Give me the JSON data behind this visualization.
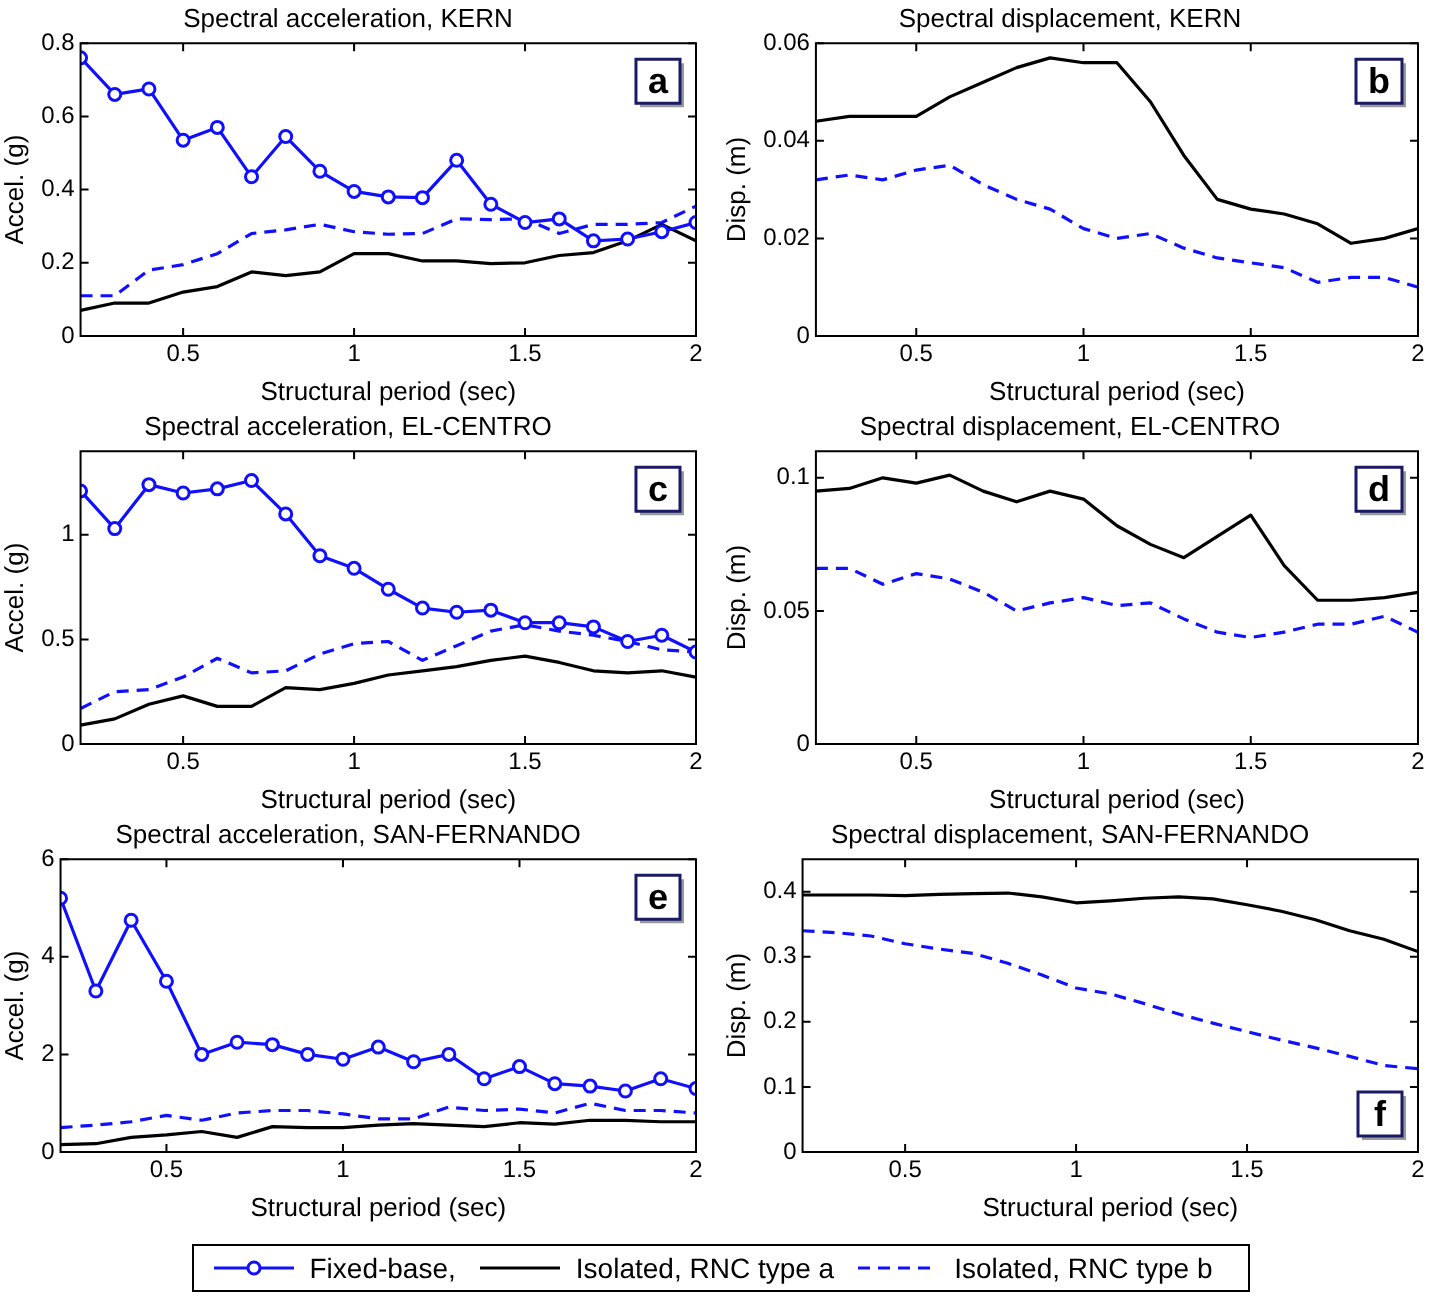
{
  "chart_data": [
    {
      "type": "line",
      "title": "Spectral acceleration, KERN",
      "xlabel": "Structural period (sec)",
      "ylabel": "Accel. (g)",
      "annotations": [
        "a"
      ],
      "legend": "bottom",
      "x": [
        0.2,
        0.3,
        0.4,
        0.5,
        0.6,
        0.7,
        0.8,
        0.9,
        1.0,
        1.1,
        1.2,
        1.3,
        1.4,
        1.5,
        1.6,
        1.7,
        1.8,
        1.9,
        2.0
      ],
      "xlim": [
        0.2,
        2
      ],
      "xticks": [
        0.5,
        1,
        1.5,
        2
      ],
      "ylim": [
        0,
        0.8
      ],
      "yticks": [
        0,
        0.2,
        0.4,
        0.6,
        0.8
      ],
      "series": [
        {
          "name": "Fixed-base,",
          "color": "#1010ff",
          "marker": "circle",
          "line_style": "solid",
          "values": [
            0.76,
            0.66,
            0.675,
            0.535,
            0.57,
            0.435,
            0.545,
            0.45,
            0.395,
            0.38,
            0.378,
            0.48,
            0.36,
            0.31,
            0.32,
            0.26,
            0.265,
            0.285,
            0.31
          ]
        },
        {
          "name": "Isolated, RNC type a",
          "color": "#000000",
          "marker": "none",
          "line_style": "solid",
          "values": [
            0.07,
            0.09,
            0.09,
            0.12,
            0.135,
            0.175,
            0.165,
            0.175,
            0.225,
            0.225,
            0.205,
            0.205,
            0.198,
            0.2,
            0.22,
            0.228,
            0.26,
            0.305,
            0.26
          ]
        },
        {
          "name": "Isolated, RNC type b",
          "color": "#1010ff",
          "marker": "none",
          "line_style": "dashed",
          "values": [
            0.11,
            0.11,
            0.18,
            0.195,
            0.225,
            0.28,
            0.29,
            0.305,
            0.285,
            0.278,
            0.28,
            0.32,
            0.318,
            0.32,
            0.28,
            0.305,
            0.305,
            0.31,
            0.355
          ]
        }
      ]
    },
    {
      "type": "line",
      "title": "Spectral displacement, KERN",
      "xlabel": "Structural period (sec)",
      "ylabel": "Disp. (m)",
      "annotations": [
        "b"
      ],
      "x": [
        0.2,
        0.3,
        0.4,
        0.5,
        0.6,
        0.7,
        0.8,
        0.9,
        1.0,
        1.1,
        1.2,
        1.3,
        1.4,
        1.5,
        1.6,
        1.7,
        1.8,
        1.9,
        2.0
      ],
      "xlim": [
        0.2,
        2
      ],
      "xticks": [
        0.5,
        1,
        1.5,
        2
      ],
      "ylim": [
        0,
        0.06
      ],
      "yticks": [
        0,
        0.02,
        0.04,
        0.06
      ],
      "series": [
        {
          "color": "#000000",
          "marker": "none",
          "line_style": "solid",
          "values": [
            0.044,
            0.045,
            0.045,
            0.045,
            0.049,
            0.052,
            0.055,
            0.057,
            0.056,
            0.056,
            0.048,
            0.037,
            0.028,
            0.026,
            0.025,
            0.023,
            0.019,
            0.02,
            0.022
          ]
        },
        {
          "color": "#1010ff",
          "marker": "none",
          "line_style": "dashed",
          "values": [
            0.032,
            0.033,
            0.032,
            0.034,
            0.035,
            0.031,
            0.028,
            0.026,
            0.022,
            0.02,
            0.021,
            0.018,
            0.016,
            0.015,
            0.014,
            0.011,
            0.012,
            0.012,
            0.01
          ]
        }
      ]
    },
    {
      "type": "line",
      "title": "Spectral acceleration, EL-CENTRO",
      "xlabel": "Structural period (sec)",
      "ylabel": "Accel. (g)",
      "annotations": [
        "c"
      ],
      "x": [
        0.2,
        0.3,
        0.4,
        0.5,
        0.6,
        0.7,
        0.8,
        0.9,
        1.0,
        1.1,
        1.2,
        1.3,
        1.4,
        1.5,
        1.6,
        1.7,
        1.8,
        1.9,
        2.0
      ],
      "xlim": [
        0.2,
        2
      ],
      "xticks": [
        0.5,
        1,
        1.5,
        2
      ],
      "ylim": [
        0,
        1.4
      ],
      "yticks": [
        0,
        0.5,
        1
      ],
      "series": [
        {
          "color": "#1010ff",
          "marker": "circle",
          "line_style": "solid",
          "values": [
            1.21,
            1.03,
            1.24,
            1.2,
            1.22,
            1.26,
            1.1,
            0.9,
            0.84,
            0.74,
            0.65,
            0.63,
            0.64,
            0.58,
            0.58,
            0.56,
            0.49,
            0.52,
            0.44
          ]
        },
        {
          "color": "#000000",
          "marker": "none",
          "line_style": "solid",
          "values": [
            0.09,
            0.12,
            0.19,
            0.23,
            0.18,
            0.18,
            0.27,
            0.26,
            0.29,
            0.33,
            0.35,
            0.37,
            0.4,
            0.42,
            0.39,
            0.35,
            0.34,
            0.35,
            0.32
          ]
        },
        {
          "color": "#1010ff",
          "marker": "none",
          "line_style": "dashed",
          "values": [
            0.17,
            0.25,
            0.26,
            0.32,
            0.41,
            0.34,
            0.35,
            0.43,
            0.48,
            0.49,
            0.4,
            0.47,
            0.54,
            0.57,
            0.54,
            0.52,
            0.49,
            0.45,
            0.44
          ]
        }
      ]
    },
    {
      "type": "line",
      "title": "Spectral displacement, EL-CENTRO",
      "xlabel": "Structural period (sec)",
      "ylabel": "Disp. (m)",
      "annotations": [
        "d"
      ],
      "x": [
        0.2,
        0.3,
        0.4,
        0.5,
        0.6,
        0.7,
        0.8,
        0.9,
        1.0,
        1.1,
        1.2,
        1.3,
        1.4,
        1.5,
        1.6,
        1.7,
        1.8,
        1.9,
        2.0
      ],
      "xlim": [
        0.2,
        2
      ],
      "xticks": [
        0.5,
        1,
        1.5,
        2
      ],
      "ylim": [
        0,
        0.11
      ],
      "yticks": [
        0,
        0.05,
        0.1
      ],
      "series": [
        {
          "color": "#000000",
          "marker": "none",
          "line_style": "solid",
          "values": [
            0.095,
            0.096,
            0.1,
            0.098,
            0.101,
            0.095,
            0.091,
            0.095,
            0.092,
            0.082,
            0.075,
            0.07,
            0.078,
            0.086,
            0.067,
            0.054,
            0.054,
            0.055,
            0.057
          ]
        },
        {
          "color": "#1010ff",
          "marker": "none",
          "line_style": "dashed",
          "values": [
            0.066,
            0.066,
            0.06,
            0.064,
            0.062,
            0.057,
            0.05,
            0.053,
            0.055,
            0.052,
            0.053,
            0.047,
            0.042,
            0.04,
            0.042,
            0.045,
            0.045,
            0.048,
            0.042
          ]
        }
      ]
    },
    {
      "type": "line",
      "title": "Spectral acceleration, SAN-FERNANDO",
      "xlabel": "Structural period (sec)",
      "ylabel": "Accel. (g)",
      "annotations": [
        "e"
      ],
      "x": [
        0.2,
        0.3,
        0.4,
        0.5,
        0.6,
        0.7,
        0.8,
        0.9,
        1.0,
        1.1,
        1.2,
        1.3,
        1.4,
        1.5,
        1.6,
        1.7,
        1.8,
        1.9,
        2.0
      ],
      "xlim": [
        0.2,
        2
      ],
      "xticks": [
        0.5,
        1,
        1.5,
        2
      ],
      "ylim": [
        0,
        6
      ],
      "yticks": [
        0,
        2,
        4,
        6
      ],
      "series": [
        {
          "color": "#1010ff",
          "marker": "circle",
          "line_style": "solid",
          "values": [
            5.2,
            3.3,
            4.75,
            3.5,
            2.0,
            2.25,
            2.2,
            2.0,
            1.9,
            2.15,
            1.85,
            2.0,
            1.5,
            1.75,
            1.4,
            1.35,
            1.25,
            1.5,
            1.3
          ]
        },
        {
          "color": "#000000",
          "marker": "none",
          "line_style": "solid",
          "values": [
            0.15,
            0.17,
            0.3,
            0.35,
            0.42,
            0.3,
            0.52,
            0.5,
            0.5,
            0.55,
            0.58,
            0.55,
            0.52,
            0.6,
            0.57,
            0.65,
            0.65,
            0.62,
            0.62
          ]
        },
        {
          "color": "#1010ff",
          "marker": "none",
          "line_style": "dashed",
          "values": [
            0.5,
            0.55,
            0.62,
            0.75,
            0.65,
            0.8,
            0.85,
            0.85,
            0.78,
            0.68,
            0.68,
            0.92,
            0.85,
            0.88,
            0.8,
            1.0,
            0.85,
            0.85,
            0.8
          ]
        }
      ]
    },
    {
      "type": "line",
      "title": "Spectral displacement, SAN-FERNANDO",
      "xlabel": "Structural period (sec)",
      "ylabel": "Disp. (m)",
      "annotations": [
        "f"
      ],
      "x": [
        0.2,
        0.3,
        0.4,
        0.5,
        0.6,
        0.7,
        0.8,
        0.9,
        1.0,
        1.1,
        1.2,
        1.3,
        1.4,
        1.5,
        1.6,
        1.7,
        1.8,
        1.9,
        2.0
      ],
      "xlim": [
        0.2,
        2
      ],
      "xticks": [
        0.5,
        1,
        1.5,
        2
      ],
      "ylim": [
        0,
        0.45
      ],
      "yticks": [
        0,
        0.1,
        0.2,
        0.3,
        0.4
      ],
      "series": [
        {
          "color": "#000000",
          "marker": "none",
          "line_style": "solid",
          "values": [
            0.395,
            0.395,
            0.395,
            0.394,
            0.396,
            0.397,
            0.398,
            0.392,
            0.383,
            0.386,
            0.39,
            0.392,
            0.389,
            0.38,
            0.37,
            0.357,
            0.34,
            0.327,
            0.308
          ]
        },
        {
          "color": "#1010ff",
          "marker": "none",
          "line_style": "dashed",
          "values": [
            0.34,
            0.337,
            0.332,
            0.32,
            0.312,
            0.305,
            0.29,
            0.272,
            0.252,
            0.243,
            0.228,
            0.212,
            0.198,
            0.185,
            0.172,
            0.16,
            0.147,
            0.133,
            0.128
          ]
        }
      ]
    }
  ]
}
